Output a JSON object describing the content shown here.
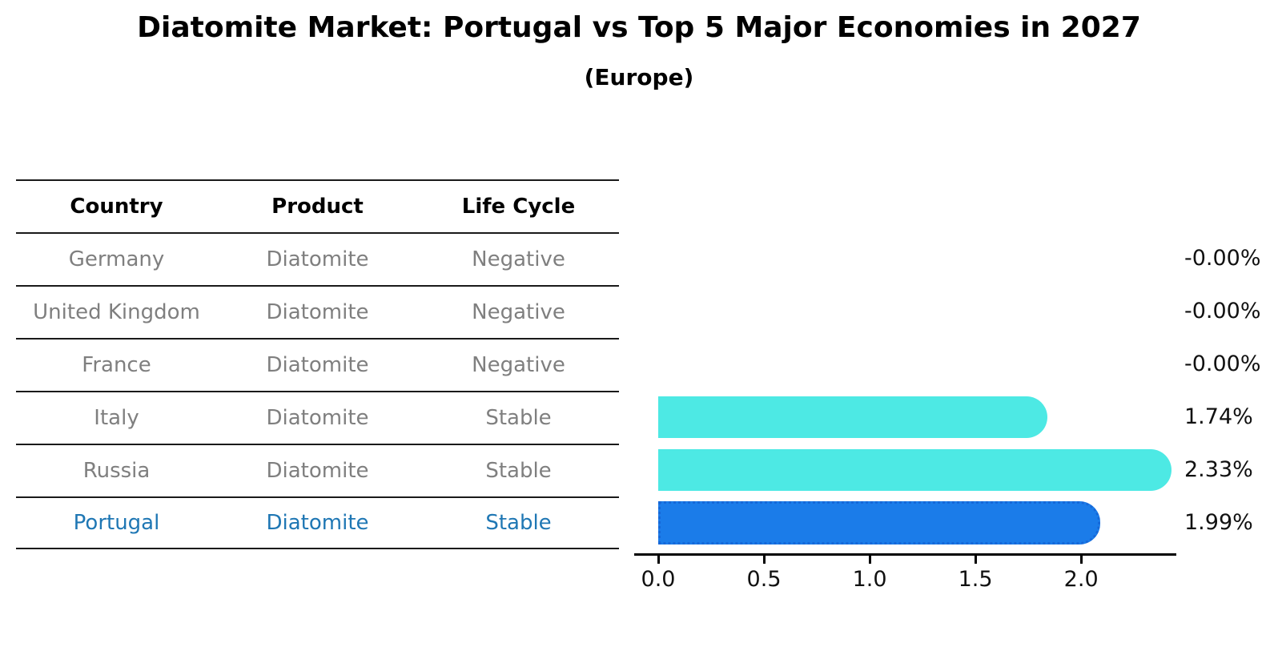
{
  "colors": {
    "accent": "#1f77b4",
    "table_text": "#7f7f7f",
    "table_header_text": "#000000",
    "line": "#1a1a1a"
  },
  "table": {
    "headers": [
      "Country",
      "Product",
      "Life Cycle"
    ],
    "rows": [
      {
        "country": "Germany",
        "product": "Diatomite",
        "life_cycle": "Negative",
        "highlight": false
      },
      {
        "country": "United Kingdom",
        "product": "Diatomite",
        "life_cycle": "Negative",
        "highlight": false
      },
      {
        "country": "France",
        "product": "Diatomite",
        "life_cycle": "Negative",
        "highlight": false
      },
      {
        "country": "Italy",
        "product": "Diatomite",
        "life_cycle": "Stable",
        "highlight": false
      },
      {
        "country": "Russia",
        "product": "Diatomite",
        "life_cycle": "Stable",
        "highlight": false
      },
      {
        "country": "Portugal",
        "product": "Diatomite",
        "life_cycle": "Stable",
        "highlight": true
      }
    ]
  },
  "chart_data": {
    "type": "bar",
    "orientation": "horizontal",
    "title": "Diatomite Market: Portugal vs Top 5 Major Economies in 2027",
    "subtitle": "(Europe)",
    "categories": [
      "Germany",
      "United Kingdom",
      "France",
      "Italy",
      "Russia",
      "Portugal"
    ],
    "values": [
      -0.0,
      -0.0,
      -0.0,
      1.74,
      2.33,
      1.99
    ],
    "value_labels": [
      "-0.00%",
      "-0.00%",
      "-0.00%",
      "1.74%",
      "2.33%",
      "1.99%"
    ],
    "highlight_category": "Portugal",
    "xlabel": "",
    "ylabel": "",
    "xlim": [
      0,
      2.45
    ],
    "xticks": [
      0,
      0.5,
      1,
      1.5,
      2
    ],
    "xtick_labels": [
      "0.0",
      "0.5",
      "1.0",
      "1.5",
      "2.0"
    ],
    "grid": false,
    "legend": false,
    "bar_color": "#4de9e4",
    "highlight_bar_color": "#1b7ce9",
    "highlight_bar_border": "#1668d8"
  }
}
